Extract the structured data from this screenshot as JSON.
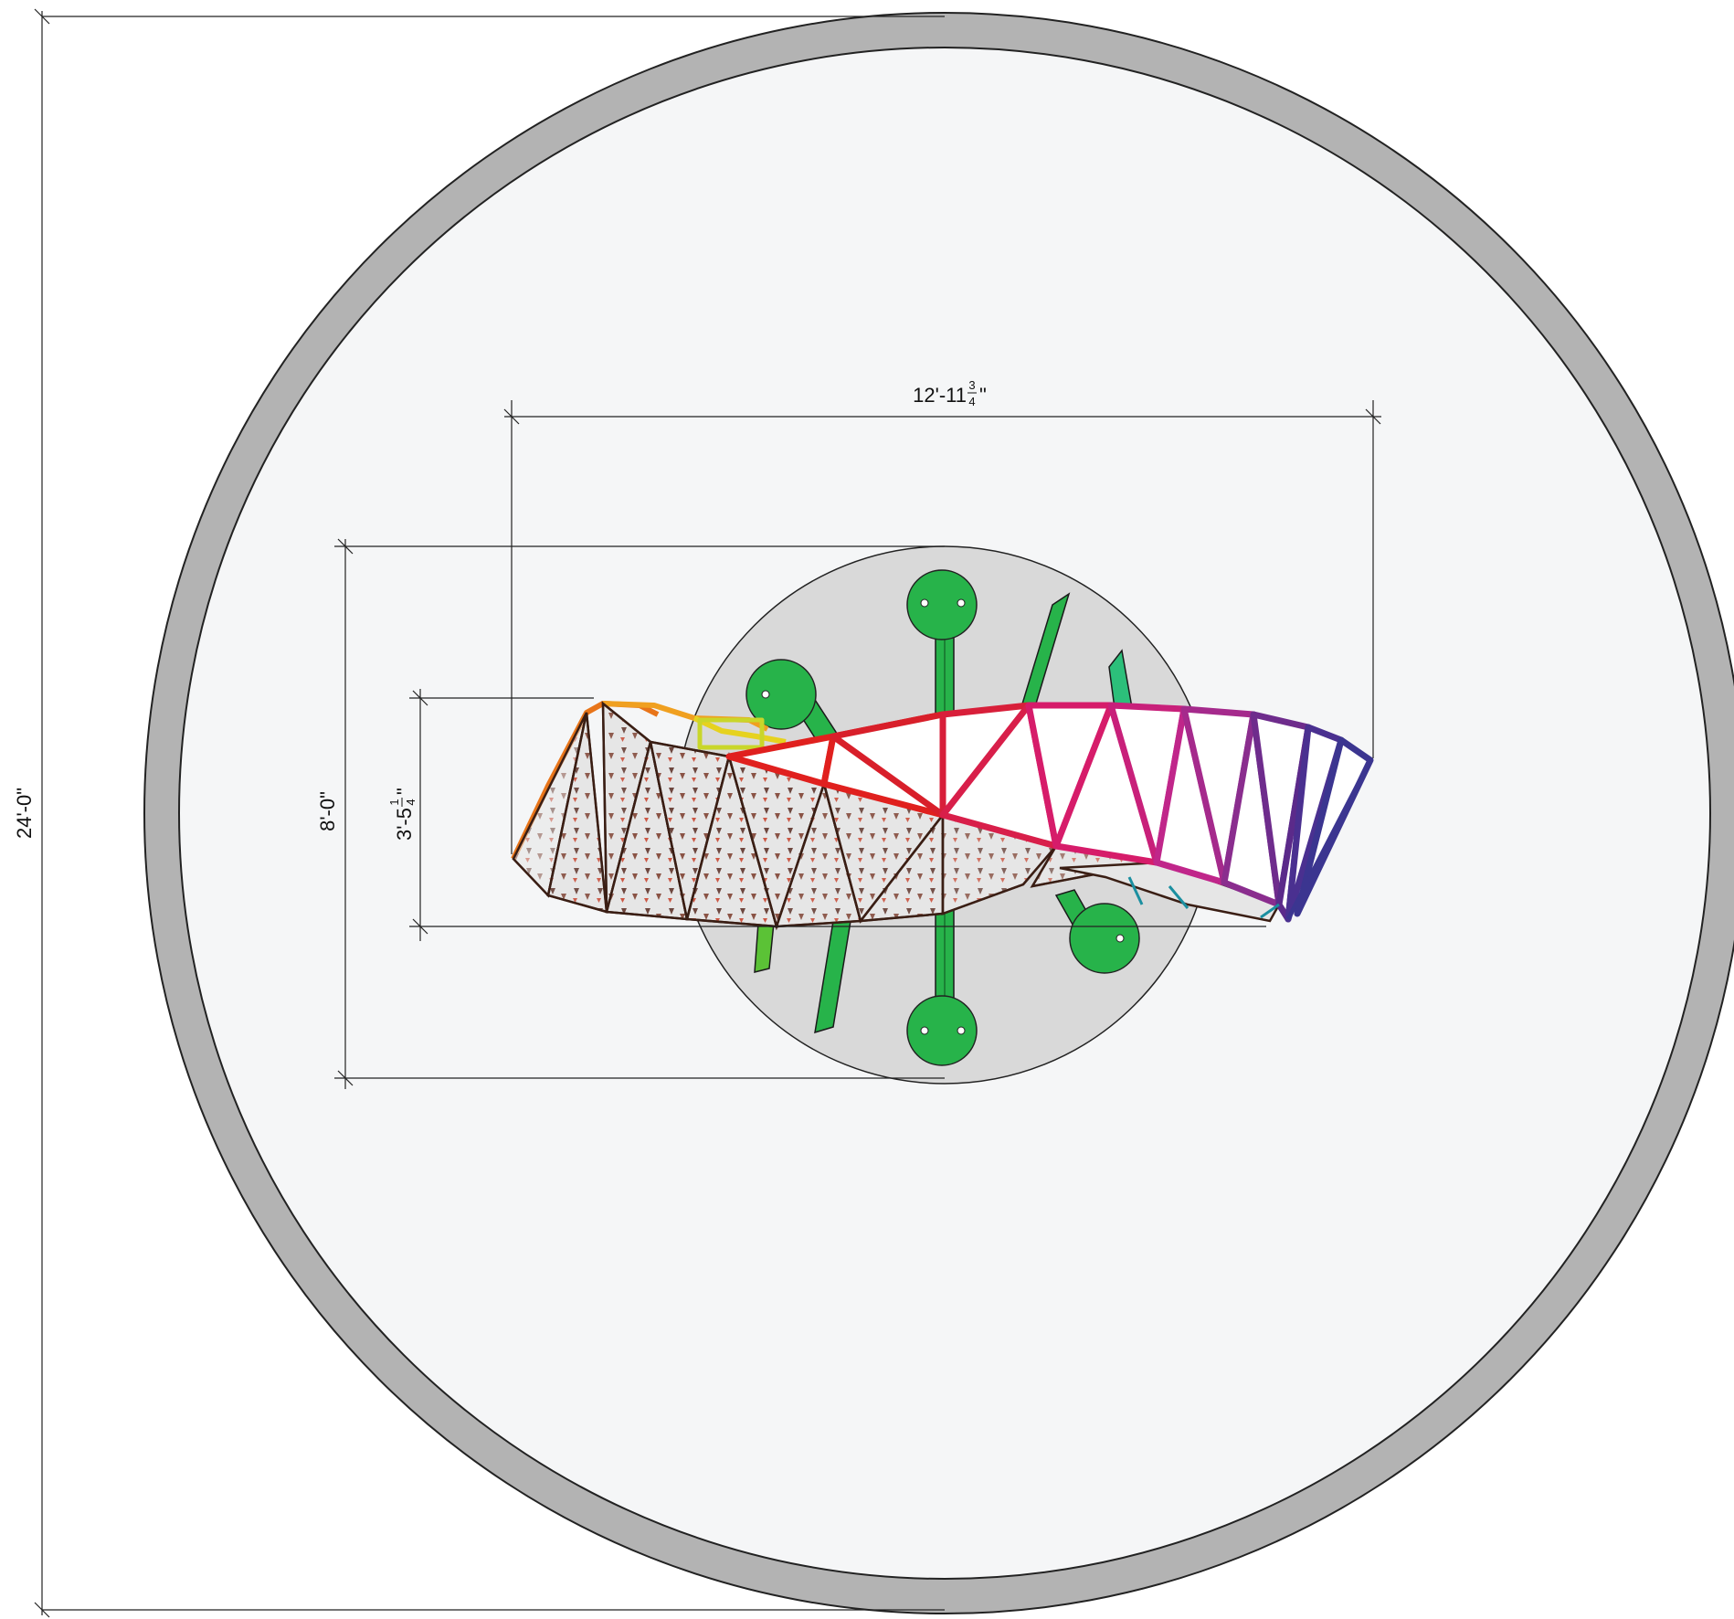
{
  "dimensions": {
    "overall_diameter": "24'-0\"",
    "structure_width": {
      "whole": "12'-11",
      "frac_num": "3",
      "frac_den": "4",
      "unit": "\""
    },
    "base_diameter": "8'-0\"",
    "structure_depth": {
      "whole": "3'-5",
      "frac_num": "1",
      "frac_den": "4",
      "unit": "\""
    }
  },
  "colors": {
    "safety_surface_ring": "#b3b3b3",
    "use_zone_fill": "#f5f6f7",
    "base_pad": "#d9d9d9",
    "post_green": "#27b34a",
    "panel_gray": "#e6e6e6"
  },
  "frame_gradient": [
    "#e8751a",
    "#f0a020",
    "#e6d21f",
    "#c9d62a",
    "#e0201e",
    "#d81f3a",
    "#d61c6a",
    "#c0268a",
    "#8a2d8e",
    "#5b2a8a",
    "#3b3590"
  ]
}
